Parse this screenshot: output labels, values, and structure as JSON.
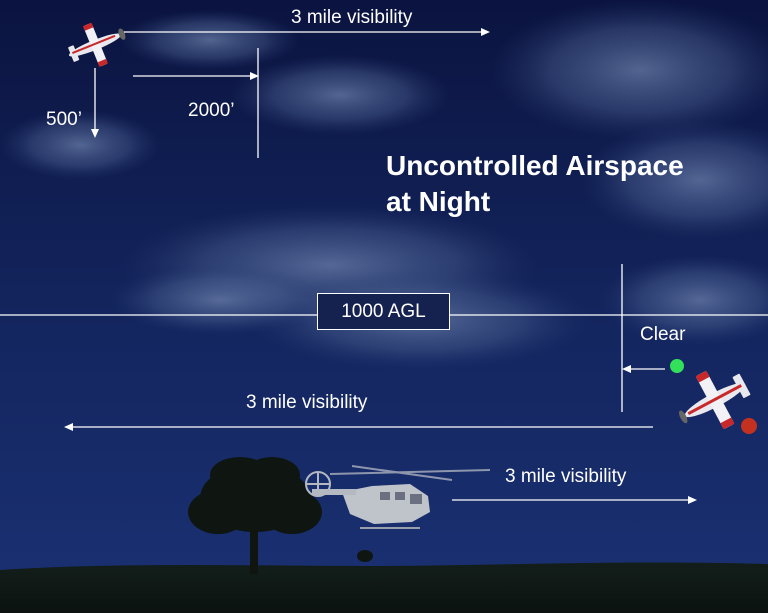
{
  "title_line1": "Uncontrolled Airspace",
  "title_line2": "at Night",
  "labels": {
    "top_visibility": "3 mile visibility",
    "below_clearance": "500’",
    "horizontal_clearance": "2000’",
    "agl": "1000 AGL",
    "clear": "Clear",
    "middle_visibility": "3 mile visibility",
    "bottom_visibility": "3 mile visibility"
  },
  "colors": {
    "sky_top": "#0b1440",
    "sky_bottom": "#1a3173",
    "line": "#ffffff",
    "nav_light_green": "#33e05a",
    "nav_light_red": "#c4321f",
    "plane_accent": "#c8282a"
  },
  "icons": [
    "airplane-top",
    "airplane-right",
    "helicopter",
    "tree"
  ]
}
